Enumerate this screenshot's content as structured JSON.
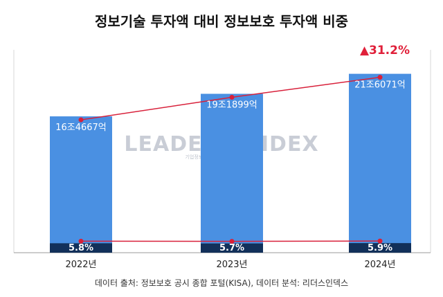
{
  "chart_data": {
    "type": "bar",
    "title": "정보기술 투자액 대비 정보보호 투자액 비중",
    "categories": [
      "2022년",
      "2023년",
      "2024년"
    ],
    "series": [
      {
        "name": "정보기술 투자액",
        "values": [
          164667,
          191899,
          216071
        ],
        "labels": [
          "16조4667억",
          "19조1899억",
          "21조6071억"
        ]
      },
      {
        "name": "정보보호 투자 비중",
        "values": [
          5.8,
          5.7,
          5.9
        ],
        "labels": [
          "5.8%",
          "5.7%",
          "5.9%"
        ]
      }
    ],
    "ylim": [
      0,
      245000
    ],
    "growth_annotation": "▲31.2%",
    "source": "데이터 출처: 정보보호 공시 종합 포털(KISA), 데이터 분석: 리더스인덱스",
    "watermark": {
      "main": "LEADERS INDEX",
      "sub": "기업정보연구소"
    },
    "colors": {
      "bar": "#4a90e2",
      "bar_dark": "#12305a",
      "line": "#d8203a",
      "grid": "#d7d7d7"
    }
  }
}
